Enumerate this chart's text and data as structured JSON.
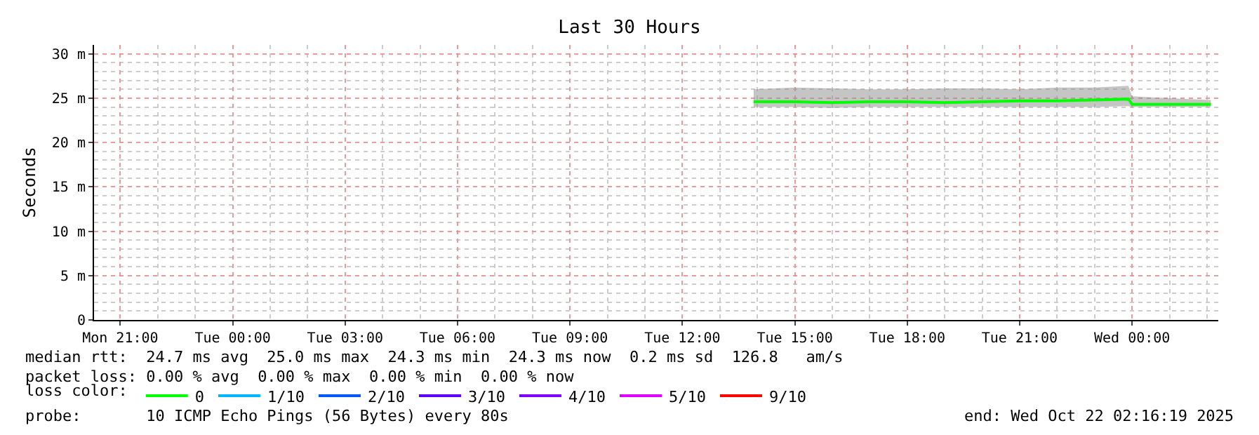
{
  "chart_data": {
    "type": "line",
    "title": "Last 30 Hours",
    "ylabel": "Seconds",
    "x": [
      "2025-10-21T13:54",
      "2025-10-21T15:00",
      "2025-10-21T16:00",
      "2025-10-21T17:00",
      "2025-10-21T18:00",
      "2025-10-21T19:00",
      "2025-10-21T20:00",
      "2025-10-21T21:00",
      "2025-10-21T22:00",
      "2025-10-21T23:00",
      "2025-10-21T23:54",
      "2025-10-22T00:00",
      "2025-10-22T01:00",
      "2025-10-22T02:06"
    ],
    "series": [
      {
        "name": "0",
        "color": "#00ff00",
        "values": [
          24.6,
          24.6,
          24.5,
          24.6,
          24.6,
          24.5,
          24.6,
          24.7,
          24.7,
          24.8,
          24.9,
          24.3,
          24.3,
          24.3
        ],
        "lower": [
          24.0,
          24.0,
          23.9,
          24.0,
          24.0,
          24.0,
          24.0,
          24.0,
          24.0,
          24.0,
          24.1,
          24.0,
          24.0,
          24.0
        ],
        "upper": [
          26.0,
          26.2,
          26.1,
          26.0,
          26.0,
          26.1,
          26.1,
          26.0,
          26.2,
          26.2,
          26.4,
          25.2,
          25.0,
          24.8
        ]
      },
      {
        "name": "1/10",
        "color": "#00b8ff",
        "values": [
          null,
          null,
          null,
          null,
          null,
          null,
          null,
          null,
          null,
          null,
          null,
          null,
          null,
          null
        ]
      },
      {
        "name": "2/10",
        "color": "#0059ff",
        "values": [
          null,
          null,
          null,
          null,
          null,
          null,
          null,
          null,
          null,
          null,
          null,
          null,
          null,
          null
        ]
      },
      {
        "name": "3/10",
        "color": "#5e00ff",
        "values": [
          null,
          null,
          null,
          null,
          null,
          null,
          null,
          null,
          null,
          null,
          null,
          null,
          null,
          null
        ]
      },
      {
        "name": "4/10",
        "color": "#7e00ff",
        "values": [
          null,
          null,
          null,
          null,
          null,
          null,
          null,
          null,
          null,
          null,
          null,
          null,
          null,
          null
        ]
      },
      {
        "name": "5/10",
        "color": "#dd00ff",
        "values": [
          null,
          null,
          null,
          null,
          null,
          null,
          null,
          null,
          null,
          null,
          null,
          null,
          null,
          null
        ]
      },
      {
        "name": "9/10",
        "color": "#ff0000",
        "values": [
          null,
          null,
          null,
          null,
          null,
          null,
          null,
          null,
          null,
          null,
          null,
          null,
          null,
          null
        ]
      }
    ],
    "legend_title": "loss color:",
    "legend": "bottom left",
    "xlim": [
      "2025-10-20T20:18",
      "2025-10-22T02:18"
    ],
    "xticks": [
      {
        "value": "2025-10-20T21:00",
        "label": "Mon 21:00"
      },
      {
        "value": "2025-10-21T00:00",
        "label": "Tue 00:00"
      },
      {
        "value": "2025-10-21T03:00",
        "label": "Tue 03:00"
      },
      {
        "value": "2025-10-21T06:00",
        "label": "Tue 06:00"
      },
      {
        "value": "2025-10-21T09:00",
        "label": "Tue 09:00"
      },
      {
        "value": "2025-10-21T12:00",
        "label": "Tue 12:00"
      },
      {
        "value": "2025-10-21T15:00",
        "label": "Tue 15:00"
      },
      {
        "value": "2025-10-21T18:00",
        "label": "Tue 18:00"
      },
      {
        "value": "2025-10-21T21:00",
        "label": "Tue 21:00"
      },
      {
        "value": "2025-10-22T00:00",
        "label": "Wed 00:00"
      }
    ],
    "ylim": [
      0,
      31
    ],
    "yticks": [
      0,
      {
        "value": 5,
        "label": "5 m"
      },
      {
        "value": 10,
        "label": "10 m"
      },
      {
        "value": 15,
        "label": "15 m"
      },
      {
        "value": 20,
        "label": "20 m"
      },
      {
        "value": 25,
        "label": "25 m"
      },
      {
        "value": 30,
        "label": "30 m"
      }
    ],
    "grid": true,
    "annotations": [
      "median rtt:  24.7 ms avg  25.0 ms max  24.3 ms min  24.3 ms now  0.2 ms sd  126.8   am/s",
      "packet loss: 0.00 % avg  0.00 % max  0.00 % min  0.00 % now",
      "probe:       10 ICMP Echo Pings (56 Bytes) every 80s",
      "end: Wed Oct 22 02:16:19 2025"
    ]
  }
}
